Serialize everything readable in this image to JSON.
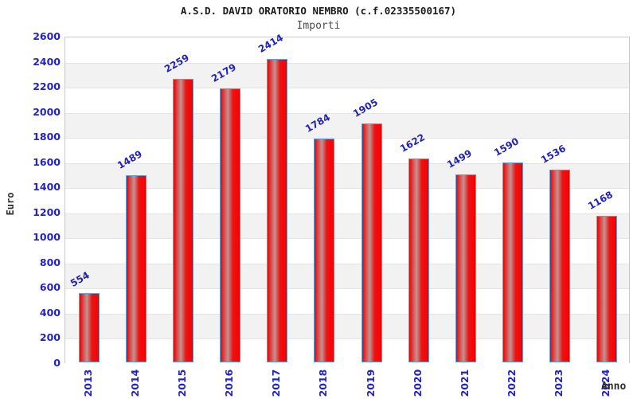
{
  "header": {
    "title": "A.S.D. DAVID ORATORIO NEMBRO (c.f.02335500167)",
    "subtitle": "Importi"
  },
  "chart_data": {
    "type": "bar",
    "title": "A.S.D. DAVID ORATORIO NEMBRO (c.f.02335500167)",
    "subtitle": "Importi",
    "xlabel": "Anno",
    "ylabel": "Euro",
    "categories": [
      "2013",
      "2014",
      "2015",
      "2016",
      "2017",
      "2018",
      "2019",
      "2020",
      "2021",
      "2022",
      "2023",
      "2024"
    ],
    "values": [
      554,
      1489,
      2259,
      2179,
      2414,
      1784,
      1905,
      1622,
      1499,
      1590,
      1536,
      1168
    ],
    "ylim": [
      0,
      2600
    ],
    "ytick_step": 200,
    "grid": "horizontal-bands-alternating",
    "legend": "none",
    "colors": {
      "bar_border": "#62a1e0",
      "bar_body": "#e81414",
      "bar_highlight": "#c69292",
      "axis_tick_text": "#2222cc",
      "value_label_text": "#2222bb",
      "band_alt": "#f2f2f2",
      "band_line": "#e4e4e4",
      "plot_border": "#c9c9c9",
      "title_text": "#1a1a1a",
      "subtitle_text": "#4d4d4d",
      "axis_title_text": "#2e2e2e"
    }
  }
}
